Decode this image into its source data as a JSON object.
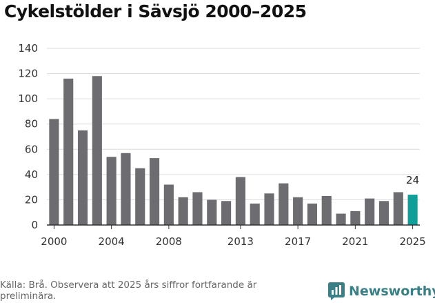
{
  "chart_data": {
    "type": "bar",
    "title": "Cykelstölder i Sävsjö 2000–2025",
    "xlabel": "",
    "ylabel": "",
    "categories": [
      2000,
      2001,
      2002,
      2003,
      2004,
      2005,
      2006,
      2007,
      2008,
      2009,
      2010,
      2011,
      2012,
      2013,
      2014,
      2015,
      2016,
      2017,
      2018,
      2019,
      2020,
      2021,
      2022,
      2023,
      2024,
      2025
    ],
    "values": [
      84,
      116,
      75,
      118,
      54,
      57,
      45,
      53,
      32,
      22,
      26,
      20,
      19,
      38,
      17,
      25,
      33,
      22,
      17,
      23,
      9,
      11,
      21,
      19,
      26,
      24
    ],
    "ylim": [
      0,
      140
    ],
    "yticks": [
      0,
      20,
      40,
      60,
      80,
      100,
      120,
      140
    ],
    "xticks": [
      "2000",
      "2004",
      "2008",
      "2013",
      "2017",
      "2021",
      "2025"
    ],
    "grid": true,
    "bar_color": "#6d6c70",
    "highlight_color": "#0f9e98",
    "highlight_category": 2025,
    "data_labels": [
      {
        "category": 2025,
        "text": "24"
      }
    ]
  },
  "footer": {
    "source": "Källa: Brå. Observera att 2025 års siffror fortfarande är preliminära.",
    "brand": "Newsworthy",
    "brand_icon": "newsworthy-logo-icon"
  }
}
